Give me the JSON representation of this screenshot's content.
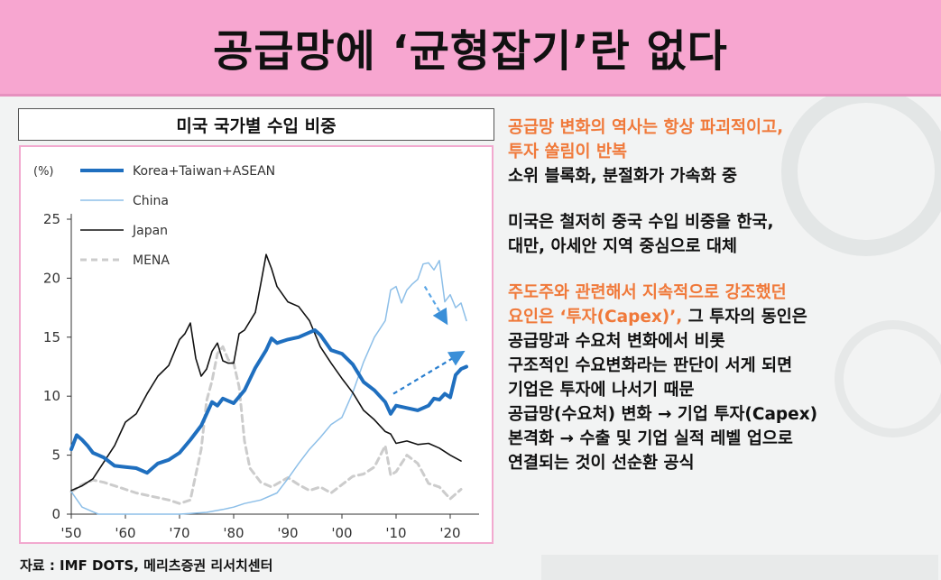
{
  "header": {
    "title": "공급망에 ‘균형잡기’란 없다"
  },
  "chart_data": {
    "type": "line",
    "title": "미국 국가별 수입 비중",
    "unit_label": "(%)",
    "ylim": [
      0,
      25
    ],
    "xlim": [
      1950,
      2024
    ],
    "yticks": [
      "0",
      "5",
      "10",
      "15",
      "20",
      "25"
    ],
    "yticks_values": [
      0,
      5,
      10,
      15,
      20,
      25
    ],
    "xticks": [
      "'50",
      "'60",
      "'70",
      "'80",
      "'90",
      "'00",
      "'10",
      "'20"
    ],
    "xticks_values": [
      1950,
      1960,
      1970,
      1980,
      1990,
      2000,
      2010,
      2020
    ],
    "legend_position": "top-left",
    "series": [
      {
        "name": "Korea+Taiwan+ASEAN",
        "color": "#1f6fbf",
        "width": 4,
        "dash": "",
        "x": [
          1950,
          1951,
          1952,
          1953,
          1954,
          1955,
          1956,
          1958,
          1960,
          1962,
          1964,
          1966,
          1968,
          1970,
          1972,
          1974,
          1976,
          1977,
          1978,
          1980,
          1982,
          1984,
          1986,
          1987,
          1988,
          1990,
          1992,
          1994,
          1995,
          1996,
          1998,
          2000,
          2002,
          2004,
          2006,
          2008,
          2009,
          2010,
          2012,
          2014,
          2015,
          2016,
          2017,
          2018,
          2019,
          2020,
          2021,
          2022,
          2023
        ],
        "y": [
          5.5,
          6.7,
          6.3,
          5.8,
          5.2,
          5.0,
          4.8,
          4.1,
          4.0,
          3.9,
          3.5,
          4.3,
          4.6,
          5.2,
          6.3,
          7.5,
          9.5,
          9.2,
          9.8,
          9.4,
          10.5,
          12.4,
          13.9,
          14.9,
          14.5,
          14.8,
          15.0,
          15.4,
          15.6,
          15.2,
          13.9,
          13.6,
          12.7,
          11.2,
          10.5,
          9.5,
          8.5,
          9.2,
          9.0,
          8.8,
          9.0,
          9.2,
          9.8,
          9.7,
          10.2,
          9.9,
          11.8,
          12.3,
          12.5
        ]
      },
      {
        "name": "China",
        "color": "#8dbfe8",
        "width": 1.5,
        "dash": "",
        "x": [
          1950,
          1952,
          1955,
          1958,
          1960,
          1965,
          1970,
          1972,
          1975,
          1978,
          1980,
          1982,
          1985,
          1988,
          1990,
          1992,
          1994,
          1996,
          1998,
          2000,
          2002,
          2004,
          2006,
          2008,
          2009,
          2010,
          2011,
          2012,
          2013,
          2014,
          2015,
          2016,
          2017,
          2018,
          2019,
          2020,
          2021,
          2022,
          2023
        ],
        "y": [
          1.9,
          0.6,
          0.0,
          0.0,
          0.0,
          0.0,
          0.0,
          0.05,
          0.15,
          0.4,
          0.6,
          0.9,
          1.2,
          1.8,
          3.0,
          4.3,
          5.5,
          6.5,
          7.6,
          8.2,
          10.3,
          12.9,
          15.0,
          16.4,
          19.0,
          19.3,
          17.9,
          19.0,
          19.5,
          19.9,
          21.2,
          21.3,
          20.7,
          21.5,
          18.0,
          18.6,
          17.5,
          17.9,
          16.4
        ]
      },
      {
        "name": "Japan",
        "color": "#111111",
        "width": 1.6,
        "dash": "",
        "x": [
          1950,
          1952,
          1954,
          1956,
          1958,
          1960,
          1962,
          1964,
          1966,
          1968,
          1970,
          1971,
          1972,
          1973,
          1974,
          1975,
          1976,
          1977,
          1978,
          1979,
          1980,
          1981,
          1982,
          1984,
          1985,
          1986,
          1987,
          1988,
          1990,
          1992,
          1994,
          1996,
          1998,
          2000,
          2002,
          2004,
          2006,
          2008,
          2009,
          2010,
          2012,
          2014,
          2016,
          2018,
          2020,
          2022
        ],
        "y": [
          2.0,
          2.4,
          3.0,
          4.4,
          5.8,
          7.8,
          8.5,
          10.2,
          11.7,
          12.6,
          14.8,
          15.3,
          16.2,
          13.2,
          11.7,
          12.3,
          13.8,
          14.5,
          13.0,
          12.8,
          12.8,
          15.3,
          15.6,
          17.1,
          19.5,
          22.0,
          20.8,
          19.3,
          18.0,
          17.6,
          16.4,
          14.2,
          12.8,
          11.5,
          10.3,
          8.8,
          8.0,
          7.0,
          6.8,
          6.0,
          6.2,
          5.9,
          6.0,
          5.6,
          5.0,
          4.5
        ]
      },
      {
        "name": "MENA",
        "color": "#cccccc",
        "width": 3,
        "dash": "7,5",
        "x": [
          1950,
          1952,
          1954,
          1956,
          1958,
          1960,
          1962,
          1964,
          1966,
          1968,
          1970,
          1972,
          1974,
          1975,
          1976,
          1977,
          1978,
          1979,
          1980,
          1981,
          1982,
          1983,
          1985,
          1987,
          1990,
          1992,
          1994,
          1996,
          1998,
          2000,
          2002,
          2004,
          2006,
          2008,
          2009,
          2010,
          2012,
          2014,
          2016,
          2018,
          2020,
          2022
        ],
        "y": [
          1.9,
          2.5,
          2.9,
          2.7,
          2.4,
          2.1,
          1.8,
          1.6,
          1.4,
          1.2,
          0.9,
          1.2,
          5.5,
          9.6,
          11.3,
          13.6,
          14.2,
          13.1,
          12.8,
          10.8,
          6.2,
          3.9,
          2.7,
          2.3,
          3.1,
          2.5,
          2.0,
          2.3,
          1.8,
          2.5,
          3.2,
          3.4,
          4.0,
          5.8,
          3.3,
          3.6,
          5.0,
          4.3,
          2.6,
          2.3,
          1.3,
          2.1
        ]
      }
    ]
  },
  "source": "자료 : IMF DOTS, 메리츠증권 리서치센터",
  "panel": {
    "paragraphs": [
      {
        "lines": [
          {
            "text": "공급망 변화의 역사는 항상 파괴적이고,",
            "color": "orange"
          },
          {
            "text": "투자 쏠림이 반복",
            "color": "orange"
          },
          {
            "text": "소위 블록화, 분절화가 가속화 중",
            "color": "black"
          }
        ]
      },
      {
        "lines": [
          {
            "text": "미국은 철저히 중국 수입 비중을 한국,",
            "color": "black"
          },
          {
            "text": "대만, 아세안 지역 중심으로 대체",
            "color": "black"
          }
        ]
      },
      {
        "lines": [
          {
            "text": "주도주와 관련해서 지속적으로 강조했던",
            "color": "orange"
          },
          {
            "text": "요인은 ‘투자(Capex)’,",
            "color": "orange",
            "tail": " 그 투자의 동인은"
          },
          {
            "text": "공급망과 수요처 변화에서 비롯",
            "color": "black"
          },
          {
            "text": "구조적인 수요변화라는 판단이 서게 되면",
            "color": "black"
          },
          {
            "text": "기업은 투자에 나서기 때문",
            "color": "black"
          },
          {
            "text": "공급망(수요처) 변화 → 기업 투자(Capex)",
            "color": "black"
          },
          {
            "text": "본격화 → 수출 및 기업 실적 레벨 업으로",
            "color": "black"
          },
          {
            "text": "연결되는 것이 선순환 공식",
            "color": "black"
          }
        ]
      }
    ]
  }
}
